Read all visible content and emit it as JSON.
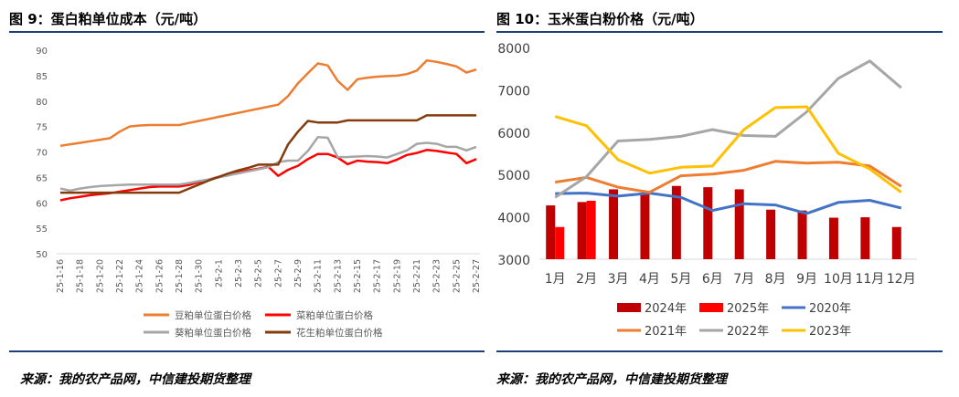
{
  "left": {
    "title": "图 9：蛋白粕单位成本（元/吨）",
    "source": "来源：我的农产品网，中信建投期货整理"
  },
  "right": {
    "title": "图 10：玉米蛋白粉价格（元/吨）",
    "source": "来源：我的农产品网，中信建投期货整理"
  },
  "chart_data": [
    {
      "type": "line",
      "ylim": [
        50,
        90
      ],
      "yticks": [
        50,
        55,
        60,
        65,
        70,
        75,
        80,
        85,
        90
      ],
      "grid": false,
      "legend_position": "bottom",
      "x": [
        "25-1-16",
        "25-1-17",
        "25-1-18",
        "25-1-19",
        "25-1-20",
        "25-1-21",
        "25-1-22",
        "25-1-23",
        "25-1-24",
        "25-1-25",
        "25-1-26",
        "25-1-27",
        "25-1-28",
        "25-1-29",
        "25-1-30",
        "25-1-31",
        "25-2-1",
        "25-2-2",
        "25-2-3",
        "25-2-4",
        "25-2-5",
        "25-2-6",
        "25-2-7",
        "25-2-8",
        "25-2-9",
        "25-2-10",
        "25-2-11",
        "25-2-12",
        "25-2-13",
        "25-2-14",
        "25-2-15",
        "25-2-16",
        "25-2-17",
        "25-2-18",
        "25-2-19",
        "25-2-20",
        "25-2-21",
        "25-2-22",
        "25-2-23",
        "25-2-24",
        "25-2-25",
        "25-2-26",
        "25-2-27"
      ],
      "xticks": [
        "25-1-16",
        "25-1-18",
        "25-1-20",
        "25-1-22",
        "25-1-24",
        "25-1-26",
        "25-1-28",
        "25-1-30",
        "25-2-1",
        "25-2-3",
        "25-2-5",
        "25-2-7",
        "25-2-9",
        "25-2-11",
        "25-2-13",
        "25-2-15",
        "25-2-17",
        "25-2-19",
        "25-2-21",
        "25-2-23",
        "25-2-25",
        "25-2-27"
      ],
      "series": [
        {
          "name": "豆粕单位蛋白价格",
          "color": "#ed7d31",
          "values": [
            71.2,
            71.5,
            71.8,
            72.1,
            72.4,
            72.7,
            74.0,
            75.0,
            75.2,
            75.3,
            75.3,
            75.3,
            75.3,
            75.7,
            76.1,
            76.5,
            76.9,
            77.3,
            77.7,
            78.1,
            78.5,
            78.9,
            79.3,
            81.0,
            83.5,
            85.5,
            87.4,
            87.0,
            84.0,
            82.2,
            84.3,
            84.6,
            84.8,
            84.9,
            85.0,
            85.3,
            86.0,
            88.0,
            87.7,
            87.3,
            86.8,
            85.6,
            86.2
          ]
        },
        {
          "name": "菜粕单位蛋白价格",
          "color": "#ff0000",
          "values": [
            60.5,
            60.9,
            61.2,
            61.5,
            61.7,
            61.9,
            62.2,
            62.5,
            62.8,
            63.1,
            63.2,
            63.2,
            63.2,
            63.5,
            64.1,
            64.6,
            65.1,
            65.6,
            66.0,
            66.4,
            66.7,
            67.1,
            65.3,
            66.5,
            67.3,
            68.6,
            69.6,
            69.6,
            68.9,
            67.6,
            68.3,
            68.1,
            68.0,
            67.8,
            68.5,
            69.4,
            69.8,
            70.4,
            70.2,
            69.9,
            69.6,
            67.8,
            68.6
          ]
        },
        {
          "name": "葵粕单位蛋白价格",
          "color": "#a6a6a6",
          "values": [
            62.8,
            62.4,
            62.8,
            63.1,
            63.3,
            63.4,
            63.5,
            63.6,
            63.6,
            63.6,
            63.6,
            63.6,
            63.6,
            63.9,
            64.3,
            64.6,
            65.0,
            65.4,
            65.8,
            66.2,
            66.6,
            67.0,
            68.0,
            68.3,
            68.3,
            70.2,
            72.9,
            72.8,
            69.0,
            69.0,
            69.1,
            69.2,
            69.1,
            68.9,
            69.6,
            70.3,
            71.6,
            71.8,
            71.6,
            71.0,
            71.0,
            70.3,
            71.0
          ]
        },
        {
          "name": "花生粕单位蛋白价格",
          "color": "#843c0c",
          "values": [
            62.0,
            62.0,
            62.0,
            62.0,
            62.0,
            62.0,
            62.0,
            62.0,
            62.0,
            62.0,
            62.0,
            62.0,
            62.0,
            62.8,
            63.6,
            64.4,
            65.1,
            65.8,
            66.4,
            66.9,
            67.5,
            67.5,
            67.5,
            71.5,
            74.0,
            76.1,
            75.8,
            75.8,
            75.8,
            76.2,
            76.2,
            76.2,
            76.2,
            76.2,
            76.2,
            76.2,
            76.2,
            77.2,
            77.2,
            77.2,
            77.2,
            77.2,
            77.2
          ]
        }
      ]
    },
    {
      "type": "bar+line",
      "ylim": [
        3000,
        8000
      ],
      "yticks": [
        3000,
        4000,
        5000,
        6000,
        7000,
        8000
      ],
      "grid": false,
      "legend_position": "bottom",
      "categories": [
        "1月",
        "2月",
        "3月",
        "4月",
        "5月",
        "6月",
        "7月",
        "8月",
        "9月",
        "10月",
        "11月",
        "12月"
      ],
      "bars": [
        {
          "name": "2024年",
          "color": "#c00000",
          "values": [
            4270,
            4350,
            4650,
            4530,
            4730,
            4700,
            4650,
            4170,
            4150,
            3980,
            3990,
            3760
          ]
        },
        {
          "name": "2025年",
          "color": "#ff0000",
          "values": [
            3760,
            4380,
            null,
            null,
            null,
            null,
            null,
            null,
            null,
            null,
            null,
            null
          ]
        }
      ],
      "lines": [
        {
          "name": "2020年",
          "color": "#4472c4",
          "values": [
            4550,
            4560,
            4490,
            4560,
            4460,
            4150,
            4310,
            4280,
            4080,
            4340,
            4390,
            4210
          ]
        },
        {
          "name": "2021年",
          "color": "#ed7d31",
          "values": [
            4820,
            4930,
            4700,
            4580,
            4970,
            5010,
            5100,
            5310,
            5270,
            5290,
            5200,
            4720
          ]
        },
        {
          "name": "2022年",
          "color": "#a6a6a6",
          "values": [
            4460,
            4950,
            5790,
            5830,
            5900,
            6060,
            5920,
            5900,
            6480,
            7270,
            7680,
            7050
          ]
        },
        {
          "name": "2023年",
          "color": "#ffc000",
          "values": [
            6370,
            6150,
            5350,
            5030,
            5170,
            5200,
            6060,
            6580,
            6600,
            5500,
            5130,
            4580
          ]
        }
      ]
    }
  ]
}
